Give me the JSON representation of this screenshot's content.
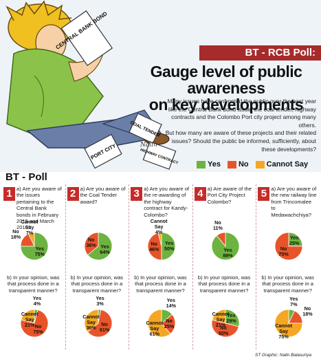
{
  "header": {
    "banner": "BT - RCB Poll:",
    "headline": [
      "Gauge level of  public awareness",
      "on key developments"
    ],
    "intro_1": "Many issues have confronted the public over the past year like the Central Bank bond issue, the coal tender, highway contracts and the Colombo Port city project among many others.",
    "intro_2": "But how many are aware of these projects and their related issues? Should the public be informed, sufficiently, about these developments?",
    "artist_signature": "Nalin",
    "papers": [
      "CENTRAL BANK BOND",
      "COAL TENDER",
      "PORT CITY",
      "HIGHWAY CONTRACT"
    ]
  },
  "legend": {
    "yes": "Yes",
    "no": "No",
    "cannot_say": "Cannot Say"
  },
  "colors": {
    "yes": "#6db33f",
    "no": "#e8542a",
    "cannot_say": "#f5a623",
    "accent": "#c62c2a",
    "banner": "#a62b2a"
  },
  "section_title": "BT - Poll",
  "credit": "ST Graphic: Nalin Balasuriya",
  "chart_data": [
    {
      "type": "pie",
      "number": "1",
      "question": "a) Are you aware of the issues pertaining to the Central Bank bonds in February 2015 and March 2016?",
      "slices": [
        {
          "name": "Yes",
          "value": 75,
          "label": "75%"
        },
        {
          "name": "No",
          "value": 18,
          "label": "18%"
        },
        {
          "name": "Cannot Say",
          "value": 7,
          "label": "7%"
        }
      ]
    },
    {
      "type": "pie",
      "number": "1",
      "question": "b) In your opinion, was that process done in a transparent manner?",
      "slices": [
        {
          "name": "Yes",
          "value": 4,
          "label": "4%"
        },
        {
          "name": "No",
          "value": 75,
          "label": "75%"
        },
        {
          "name": "Cannot Say",
          "value": 21,
          "label": "21%"
        }
      ]
    },
    {
      "type": "pie",
      "number": "2",
      "question": "a) Are you aware of the Coal Tender award?",
      "slices": [
        {
          "name": "Yes",
          "value": 64,
          "label": "64%"
        },
        {
          "name": "No",
          "value": 36,
          "label": "36%"
        }
      ]
    },
    {
      "type": "pie",
      "number": "2",
      "question": "b) In your opinion, was that process done in a transparent manner?",
      "slices": [
        {
          "name": "Yes",
          "value": 3,
          "label": "3%"
        },
        {
          "name": "No",
          "value": 61,
          "label": "61%"
        },
        {
          "name": "Cannot Say",
          "value": 36,
          "label": "36%"
        }
      ]
    },
    {
      "type": "pie",
      "number": "3",
      "question": "a) Are you aware of the re-awarding of the highway contract for Kandy-Colombo?",
      "slices": [
        {
          "name": "Yes",
          "value": 50,
          "label": "50%"
        },
        {
          "name": "No",
          "value": 46,
          "label": "46%"
        },
        {
          "name": "Cannot Say",
          "value": 4,
          "label": "4%"
        }
      ]
    },
    {
      "type": "pie",
      "number": "3",
      "question": "b) In your opinion, was that process done in a transparent manner?",
      "slices": [
        {
          "name": "Yes",
          "value": 14,
          "label": "14%"
        },
        {
          "name": "No",
          "value": 25,
          "label": "25%"
        },
        {
          "name": "Cannot Say",
          "value": 61,
          "label": "61%"
        }
      ]
    },
    {
      "type": "pie",
      "number": "4",
      "question": "a) Are aware of the Port City Project Colombo?",
      "slices": [
        {
          "name": "Yes",
          "value": 89,
          "label": "89%"
        },
        {
          "name": "No",
          "value": 11,
          "label": "11%"
        }
      ]
    },
    {
      "type": "pie",
      "number": "4",
      "question": "b) In your opinion, was that process done in a transparent manner?",
      "slices": [
        {
          "name": "Yes",
          "value": 29,
          "label": "29%"
        },
        {
          "name": "No",
          "value": 50,
          "label": "50%"
        },
        {
          "name": "Cannot Say",
          "value": 21,
          "label": "21%"
        }
      ]
    },
    {
      "type": "pie",
      "number": "5",
      "question": "a) Are you aware of the new railway line from Trincomalee to Medawachchiya?",
      "slices": [
        {
          "name": "Yes",
          "value": 25,
          "label": "25%"
        },
        {
          "name": "No",
          "value": 75,
          "label": "75%"
        }
      ]
    },
    {
      "type": "pie",
      "number": "5",
      "question": "b) In your opinion, was that process done in a transparent manner?",
      "slices": [
        {
          "name": "Yes",
          "value": 7,
          "label": "7%"
        },
        {
          "name": "No",
          "value": 18,
          "label": "18%"
        },
        {
          "name": "Cannot Say",
          "value": 75,
          "label": "75%"
        }
      ]
    }
  ]
}
